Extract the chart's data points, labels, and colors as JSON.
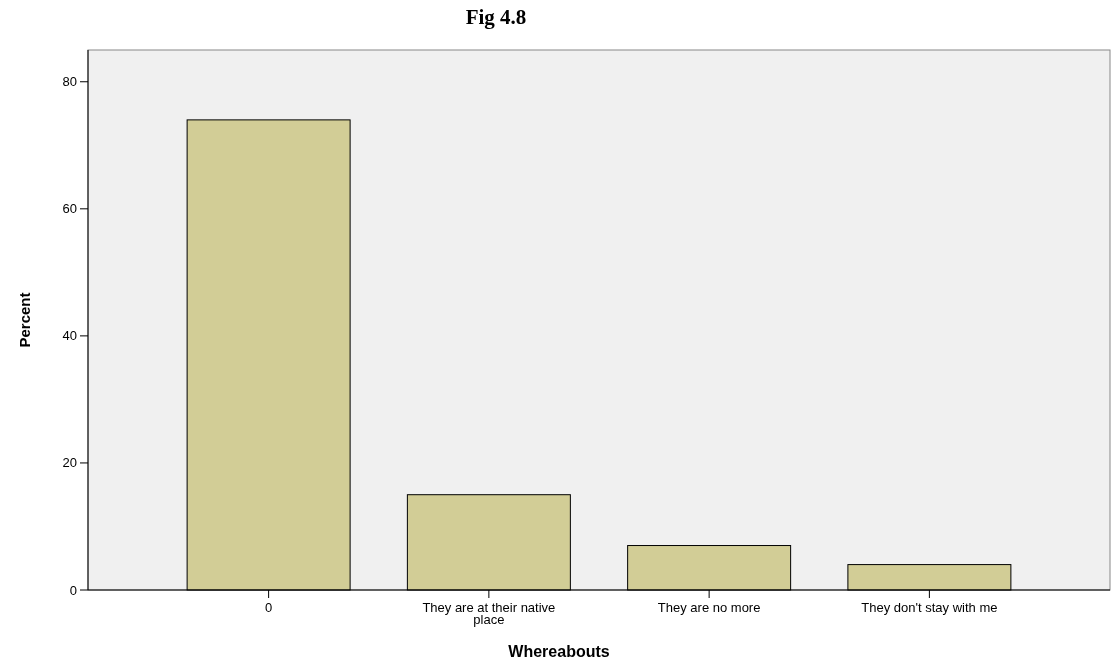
{
  "chart_data": {
    "type": "bar",
    "title": "Fig 4.8",
    "xlabel": "Whereabouts",
    "ylabel": "Percent",
    "categories": [
      "0",
      "They are at their native place",
      "They are no more",
      "They don't stay with me"
    ],
    "values": [
      74,
      15,
      7,
      4
    ],
    "color": "#d2cd96",
    "ylim": [
      0,
      85
    ],
    "yticks": [
      0,
      20,
      40,
      60,
      80
    ],
    "grid": false
  }
}
